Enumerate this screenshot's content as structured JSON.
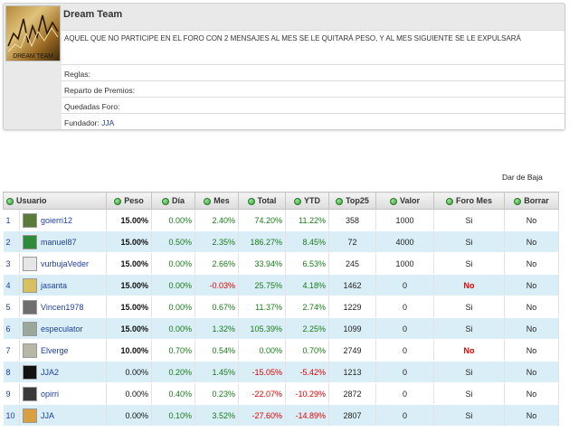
{
  "team": {
    "name": "Dream Team",
    "logo_caption": "DREAM TEAM",
    "description": "AQUEL QUE NO PARTICIPE EN EL FORO CON 2 MENSAJES AL MES SE LE QUITARÁ PESO, Y AL MES SIGUIENTE SE LE EXPULSARÁ",
    "rules_label": "Reglas:",
    "prizes_label": "Reparto de Premios:",
    "meetups_label": "Quedadas Foro:",
    "founder_label": "Fundador:",
    "founder_name": "JJA"
  },
  "actions": {
    "leave_label": "Dar de Baja"
  },
  "table": {
    "headers": {
      "user": "Usuario",
      "weight": "Peso",
      "day": "Día",
      "month": "Mes",
      "total": "Total",
      "ytd": "YTD",
      "top25": "Top25",
      "value": "Valor",
      "forum_month": "Foro Mes",
      "delete": "Borrar"
    },
    "rows": [
      {
        "rank": "1",
        "user": "goierri12",
        "avatar_color": "#5a7a3a",
        "weight": "15.00%",
        "day": "0.00%",
        "month": "2.40%",
        "total": "74.20%",
        "ytd": "11.22%",
        "top25": "358",
        "value": "1000",
        "forum": "Si",
        "delete": "No"
      },
      {
        "rank": "2",
        "user": "manuel87",
        "avatar_color": "#2e8b3a",
        "weight": "15.00%",
        "day": "0.50%",
        "month": "2.35%",
        "total": "186.27%",
        "ytd": "8.45%",
        "top25": "72",
        "value": "4000",
        "forum": "Si",
        "delete": "No"
      },
      {
        "rank": "3",
        "user": "vurbujaVeder",
        "avatar_color": "#e6e6e6",
        "weight": "15.00%",
        "day": "0.00%",
        "month": "2.66%",
        "total": "33.94%",
        "ytd": "6.53%",
        "top25": "245",
        "value": "1000",
        "forum": "Si",
        "delete": "No"
      },
      {
        "rank": "4",
        "user": "jasanta",
        "avatar_color": "#d8c060",
        "weight": "15.00%",
        "day": "0.00%",
        "month": "-0.03%",
        "total": "25.75%",
        "ytd": "4.18%",
        "top25": "1462",
        "value": "0",
        "forum": "No",
        "delete": "No"
      },
      {
        "rank": "5",
        "user": "Vincen1978",
        "avatar_color": "#6e6e6e",
        "weight": "15.00%",
        "day": "0.00%",
        "month": "0.67%",
        "total": "11.37%",
        "ytd": "2.74%",
        "top25": "1229",
        "value": "0",
        "forum": "Si",
        "delete": "No"
      },
      {
        "rank": "6",
        "user": "especulator",
        "avatar_color": "#9aa89a",
        "weight": "15.00%",
        "day": "0.00%",
        "month": "1.32%",
        "total": "105.39%",
        "ytd": "2.25%",
        "top25": "1099",
        "value": "0",
        "forum": "Si",
        "delete": "No"
      },
      {
        "rank": "7",
        "user": "Elverge",
        "avatar_color": "#b8b8a8",
        "weight": "10.00%",
        "day": "0.70%",
        "month": "0.54%",
        "total": "0.00%",
        "ytd": "0.70%",
        "top25": "2749",
        "value": "0",
        "forum": "No",
        "delete": "No"
      },
      {
        "rank": "8",
        "user": "JJA2",
        "avatar_color": "#111111",
        "weight": "0.00%",
        "day": "0.20%",
        "month": "1.45%",
        "total": "-15.05%",
        "ytd": "-5.42%",
        "top25": "1213",
        "value": "0",
        "forum": "Si",
        "delete": "No"
      },
      {
        "rank": "9",
        "user": "opirri",
        "avatar_color": "#3a3a3a",
        "weight": "0.00%",
        "day": "0.40%",
        "month": "0.23%",
        "total": "-22.07%",
        "ytd": "-10.29%",
        "top25": "2872",
        "value": "0",
        "forum": "Si",
        "delete": "No"
      },
      {
        "rank": "10",
        "user": "JJA",
        "avatar_color": "#d8a040",
        "weight": "0.00%",
        "day": "0.10%",
        "month": "3.52%",
        "total": "-27.60%",
        "ytd": "-14.89%",
        "top25": "2807",
        "value": "0",
        "forum": "Si",
        "delete": "No"
      }
    ]
  },
  "colors": {
    "positive": "#1a7a1a",
    "negative": "#e00000",
    "link": "#2040a0",
    "row_alt": "#d9eef6"
  }
}
